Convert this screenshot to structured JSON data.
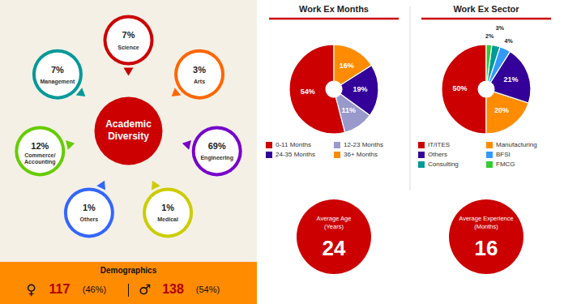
{
  "chart_data": [
    {
      "type": "bubble",
      "title": "Academic\nDiversity",
      "color": "#cc0000",
      "categories": [
        "Science",
        "Arts",
        "Engineering",
        "Medical",
        "Others",
        "Commerce/\nAccounting",
        "Management"
      ],
      "values": [
        7,
        3,
        69,
        1,
        1,
        12,
        7
      ],
      "value_labels": [
        "7%",
        "3%",
        "69%",
        "1%",
        "1%",
        "12%",
        "7%"
      ],
      "colors": [
        "#cc0000",
        "#ff6600",
        "#7700cc",
        "#cccc00",
        "#3366ff",
        "#66cc00",
        "#009999"
      ],
      "data_labels": true
    },
    {
      "type": "donut",
      "title": "Work Ex Months",
      "categories": [
        "0-11 Months",
        "12-23 Months",
        "24-35 Months",
        "36+ Months"
      ],
      "values": [
        54,
        11,
        19,
        16
      ],
      "value_labels": [
        "54%",
        "11%",
        "19%",
        "16%"
      ],
      "colors": [
        "#cc0000",
        "#9999cc",
        "#330099",
        "#ff8c00"
      ],
      "data_labels": true,
      "legend": "bottom"
    },
    {
      "type": "donut",
      "title": "Work Ex Sector",
      "categories": [
        "IT/ITES",
        "Manufacturing",
        "Others",
        "BFSI",
        "Consulting",
        "FMCG"
      ],
      "values": [
        50,
        20,
        21,
        4,
        3,
        2
      ],
      "value_labels": [
        "50%",
        "20%",
        "21%",
        "4%",
        "3%",
        "2%"
      ],
      "colors": [
        "#cc0000",
        "#ff8c00",
        "#330099",
        "#3399ff",
        "#009999",
        "#33cc33"
      ],
      "data_labels": true,
      "legend": "bottom"
    },
    {
      "type": "stat",
      "title": "Demographics",
      "color": "#ff8c00",
      "categories": [
        "♀",
        "♂"
      ],
      "values": [
        117,
        138
      ],
      "shares": [
        46,
        54
      ],
      "share_labels": [
        "(46%)",
        "(54%)"
      ]
    },
    {
      "type": "stat",
      "color": "#cc0000",
      "categories": [
        "Average Age\n(Years)",
        "Average Experience\n(Months)"
      ],
      "values": [
        24,
        16
      ]
    }
  ]
}
